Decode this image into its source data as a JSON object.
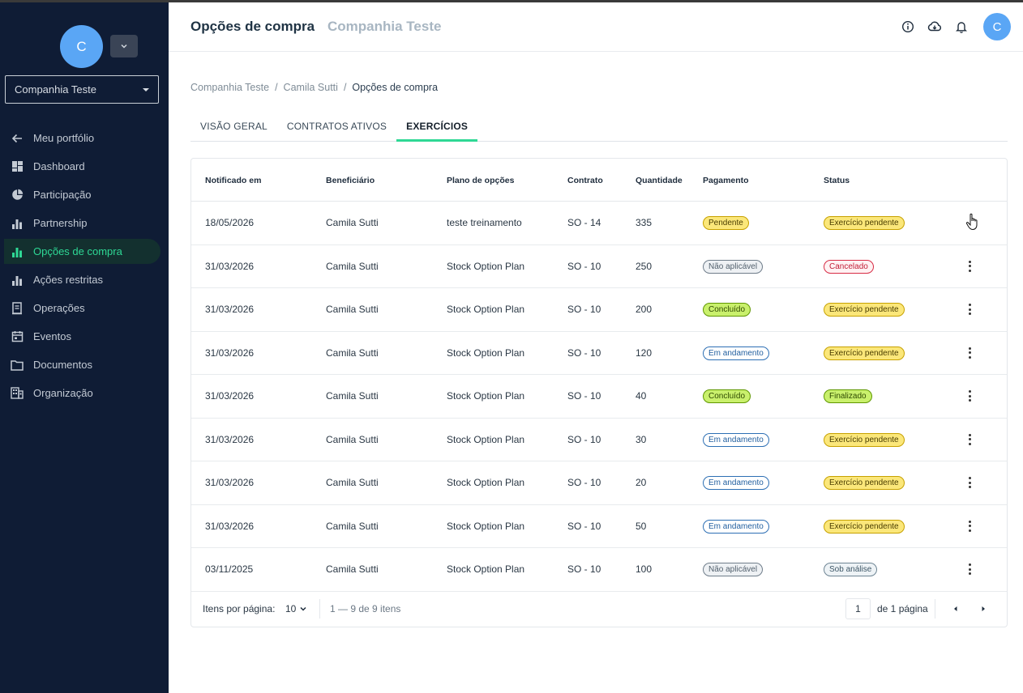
{
  "sidebar": {
    "avatar_initial": "C",
    "company_select": "Companhia Teste",
    "items": [
      {
        "label": "Meu portfólio",
        "icon": "arrow-left-icon"
      },
      {
        "label": "Dashboard",
        "icon": "dashboard-icon"
      },
      {
        "label": "Participação",
        "icon": "pie-chart-icon"
      },
      {
        "label": "Partnership",
        "icon": "bar-chart-icon"
      },
      {
        "label": "Opções de compra",
        "icon": "bar-chart-icon",
        "active": true
      },
      {
        "label": "Ações restritas",
        "icon": "bar-chart-icon"
      },
      {
        "label": "Operações",
        "icon": "receipt-icon"
      },
      {
        "label": "Eventos",
        "icon": "calendar-icon"
      },
      {
        "label": "Documentos",
        "icon": "folder-icon"
      },
      {
        "label": "Organização",
        "icon": "building-icon"
      }
    ]
  },
  "header": {
    "title": "Opções de compra",
    "subtitle": "Companhia Teste",
    "avatar_initial": "C",
    "icons": [
      "info-icon",
      "cloud-download-icon",
      "bell-icon"
    ]
  },
  "breadcrumb": [
    "Companhia Teste",
    "/",
    "Camila Sutti",
    "/",
    "Opções de compra"
  ],
  "tabs": [
    {
      "label": "VISÃO GERAL",
      "active": false
    },
    {
      "label": "CONTRATOS ATIVOS",
      "active": false
    },
    {
      "label": "EXERCÍCIOS",
      "active": true
    }
  ],
  "table": {
    "columns": [
      "Notificado em",
      "Beneficiário",
      "Plano de opções",
      "Contrato",
      "Quantidade",
      "Pagamento",
      "Status"
    ],
    "rows": [
      {
        "date": "18/05/2026",
        "beneficiary": "Camila Sutti",
        "plan": "teste treinamento",
        "contract": "SO - 14",
        "quantity": "335",
        "payment": "Pendente",
        "payment_style": "yellow",
        "status": "Exercício pendente",
        "status_style": "yellow"
      },
      {
        "date": "31/03/2026",
        "beneficiary": "Camila Sutti",
        "plan": "Stock Option Plan",
        "contract": "SO - 10",
        "quantity": "250",
        "payment": "Não aplicável",
        "payment_style": "grey",
        "status": "Cancelado",
        "status_style": "red"
      },
      {
        "date": "31/03/2026",
        "beneficiary": "Camila Sutti",
        "plan": "Stock Option Plan",
        "contract": "SO - 10",
        "quantity": "200",
        "payment": "Concluído",
        "payment_style": "green",
        "status": "Exercício pendente",
        "status_style": "yellow"
      },
      {
        "date": "31/03/2026",
        "beneficiary": "Camila Sutti",
        "plan": "Stock Option Plan",
        "contract": "SO - 10",
        "quantity": "120",
        "payment": "Em andamento",
        "payment_style": "blue",
        "status": "Exercício pendente",
        "status_style": "yellow"
      },
      {
        "date": "31/03/2026",
        "beneficiary": "Camila Sutti",
        "plan": "Stock Option Plan",
        "contract": "SO - 10",
        "quantity": "40",
        "payment": "Concluído",
        "payment_style": "green",
        "status": "Finalizado",
        "status_style": "green"
      },
      {
        "date": "31/03/2026",
        "beneficiary": "Camila Sutti",
        "plan": "Stock Option Plan",
        "contract": "SO - 10",
        "quantity": "30",
        "payment": "Em andamento",
        "payment_style": "blue",
        "status": "Exercício pendente",
        "status_style": "yellow"
      },
      {
        "date": "31/03/2026",
        "beneficiary": "Camila Sutti",
        "plan": "Stock Option Plan",
        "contract": "SO - 10",
        "quantity": "20",
        "payment": "Em andamento",
        "payment_style": "blue",
        "status": "Exercício pendente",
        "status_style": "yellow"
      },
      {
        "date": "31/03/2026",
        "beneficiary": "Camila Sutti",
        "plan": "Stock Option Plan",
        "contract": "SO - 10",
        "quantity": "50",
        "payment": "Em andamento",
        "payment_style": "blue",
        "status": "Exercício pendente",
        "status_style": "yellow"
      },
      {
        "date": "03/11/2025",
        "beneficiary": "Camila Sutti",
        "plan": "Stock Option Plan",
        "contract": "SO - 10",
        "quantity": "100",
        "payment": "Não aplicável",
        "payment_style": "grey",
        "status": "Sob análise",
        "status_style": "teal"
      }
    ]
  },
  "pagination": {
    "items_per_page_label": "Itens por página:",
    "items_per_page_value": "10",
    "range_text": "1 — 9 de 9 itens",
    "current_page": "1",
    "of_pages_text": "de 1 página"
  },
  "colors": {
    "sidebar_bg": "#0f1c35",
    "accent": "#2ed895",
    "avatar": "#5aa6f5"
  }
}
